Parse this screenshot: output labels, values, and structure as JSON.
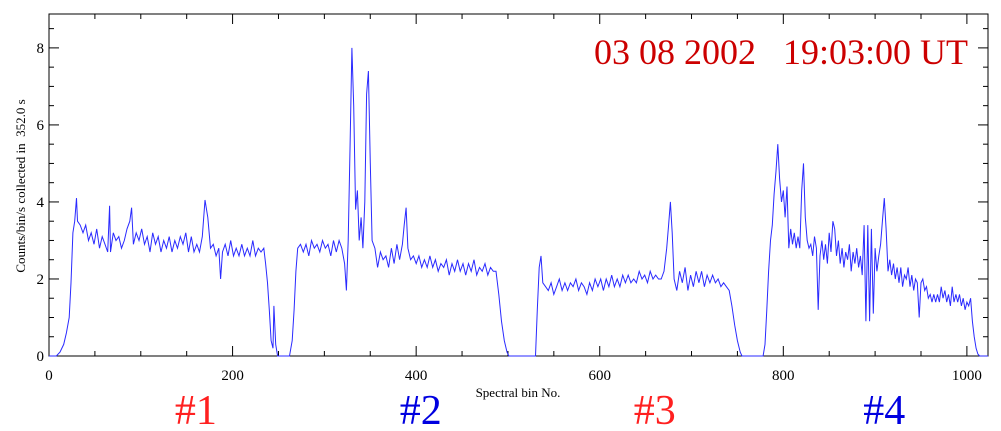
{
  "chart_data": {
    "type": "line",
    "title": "03 08 2002   19:03:00 UT",
    "xlabel": "Spectral bin No.",
    "ylabel": "Counts/bin/s collected in  352.0 s",
    "xlim": [
      0,
      1023
    ],
    "ylim": [
      0,
      8.88
    ],
    "xticks": [
      0,
      200,
      400,
      600,
      800,
      1000
    ],
    "yticks": [
      0,
      2,
      4,
      6,
      8
    ],
    "grid": false,
    "line_color": "#2a2aff",
    "title_color": "#cc0000",
    "segment_labels": [
      {
        "text": "#1",
        "color": "#ff2020",
        "x": 160
      },
      {
        "text": "#2",
        "color": "#0000e0",
        "x": 405
      },
      {
        "text": "#3",
        "color": "#ff2020",
        "x": 660
      },
      {
        "text": "#4",
        "color": "#0000e0",
        "x": 910
      }
    ],
    "points": [
      [
        0,
        0
      ],
      [
        8,
        0
      ],
      [
        12,
        0.1
      ],
      [
        16,
        0.3
      ],
      [
        19,
        0.6
      ],
      [
        22,
        1.0
      ],
      [
        24,
        1.9
      ],
      [
        26,
        3.2
      ],
      [
        28,
        3.5
      ],
      [
        30,
        4.1
      ],
      [
        31,
        3.5
      ],
      [
        34,
        3.4
      ],
      [
        37,
        3.2
      ],
      [
        40,
        3.4
      ],
      [
        43,
        3.0
      ],
      [
        46,
        3.2
      ],
      [
        49,
        2.9
      ],
      [
        52,
        3.3
      ],
      [
        55,
        2.8
      ],
      [
        58,
        3.1
      ],
      [
        61,
        2.9
      ],
      [
        64,
        2.7
      ],
      [
        66,
        3.9
      ],
      [
        67,
        2.7
      ],
      [
        70,
        3.2
      ],
      [
        73,
        3.0
      ],
      [
        76,
        3.1
      ],
      [
        79,
        2.8
      ],
      [
        82,
        3.0
      ],
      [
        85,
        3.3
      ],
      [
        88,
        3.5
      ],
      [
        90,
        3.85
      ],
      [
        92,
        2.9
      ],
      [
        95,
        3.2
      ],
      [
        98,
        3.0
      ],
      [
        101,
        3.3
      ],
      [
        104,
        2.9
      ],
      [
        107,
        3.1
      ],
      [
        110,
        2.7
      ],
      [
        113,
        3.2
      ],
      [
        116,
        2.9
      ],
      [
        119,
        3.1
      ],
      [
        122,
        2.7
      ],
      [
        125,
        3.0
      ],
      [
        128,
        2.8
      ],
      [
        131,
        3.1
      ],
      [
        134,
        2.7
      ],
      [
        137,
        3.0
      ],
      [
        140,
        2.8
      ],
      [
        143,
        3.1
      ],
      [
        146,
        2.9
      ],
      [
        149,
        3.2
      ],
      [
        152,
        2.7
      ],
      [
        155,
        3.1
      ],
      [
        158,
        2.7
      ],
      [
        161,
        2.9
      ],
      [
        164,
        2.7
      ],
      [
        167,
        3.1
      ],
      [
        170,
        4.05
      ],
      [
        173,
        3.6
      ],
      [
        176,
        2.8
      ],
      [
        179,
        2.9
      ],
      [
        182,
        2.6
      ],
      [
        185,
        2.8
      ],
      [
        187,
        2.0
      ],
      [
        189,
        2.7
      ],
      [
        192,
        2.9
      ],
      [
        195,
        2.6
      ],
      [
        198,
        3.0
      ],
      [
        201,
        2.6
      ],
      [
        204,
        2.8
      ],
      [
        207,
        2.6
      ],
      [
        210,
        2.9
      ],
      [
        213,
        2.6
      ],
      [
        216,
        2.8
      ],
      [
        219,
        2.6
      ],
      [
        222,
        3.0
      ],
      [
        225,
        2.6
      ],
      [
        228,
        2.8
      ],
      [
        231,
        2.7
      ],
      [
        234,
        2.8
      ],
      [
        236,
        2.4
      ],
      [
        238,
        1.9
      ],
      [
        240,
        1.2
      ],
      [
        242,
        0.4
      ],
      [
        244,
        0.2
      ],
      [
        245,
        1.3
      ],
      [
        247,
        0.3
      ],
      [
        249,
        0
      ],
      [
        262,
        0
      ],
      [
        265,
        0.4
      ],
      [
        267,
        1.2
      ],
      [
        269,
        2.2
      ],
      [
        271,
        2.8
      ],
      [
        274,
        2.9
      ],
      [
        277,
        2.7
      ],
      [
        280,
        2.9
      ],
      [
        283,
        2.6
      ],
      [
        286,
        3.0
      ],
      [
        289,
        2.8
      ],
      [
        292,
        2.9
      ],
      [
        295,
        2.7
      ],
      [
        298,
        3.0
      ],
      [
        301,
        2.8
      ],
      [
        304,
        2.9
      ],
      [
        307,
        2.6
      ],
      [
        310,
        3.0
      ],
      [
        313,
        2.7
      ],
      [
        316,
        3.0
      ],
      [
        319,
        2.8
      ],
      [
        322,
        2.4
      ],
      [
        324,
        1.7
      ],
      [
        326,
        3.0
      ],
      [
        328,
        5.5
      ],
      [
        330,
        8.0
      ],
      [
        332,
        6.5
      ],
      [
        334,
        3.8
      ],
      [
        336,
        4.3
      ],
      [
        338,
        3.0
      ],
      [
        340,
        3.6
      ],
      [
        342,
        2.8
      ],
      [
        344,
        4.0
      ],
      [
        346,
        6.8
      ],
      [
        348,
        7.4
      ],
      [
        350,
        5.0
      ],
      [
        352,
        3.0
      ],
      [
        355,
        2.8
      ],
      [
        358,
        2.3
      ],
      [
        361,
        2.7
      ],
      [
        364,
        2.5
      ],
      [
        367,
        2.6
      ],
      [
        370,
        2.3
      ],
      [
        373,
        2.8
      ],
      [
        376,
        2.4
      ],
      [
        379,
        2.9
      ],
      [
        382,
        2.5
      ],
      [
        385,
        2.9
      ],
      [
        387,
        3.4
      ],
      [
        389,
        3.85
      ],
      [
        391,
        2.8
      ],
      [
        394,
        2.5
      ],
      [
        397,
        2.6
      ],
      [
        400,
        2.4
      ],
      [
        403,
        2.6
      ],
      [
        406,
        2.3
      ],
      [
        409,
        2.5
      ],
      [
        412,
        2.3
      ],
      [
        415,
        2.6
      ],
      [
        418,
        2.3
      ],
      [
        421,
        2.5
      ],
      [
        424,
        2.2
      ],
      [
        427,
        2.4
      ],
      [
        430,
        2.3
      ],
      [
        433,
        2.5
      ],
      [
        436,
        2.1
      ],
      [
        439,
        2.4
      ],
      [
        442,
        2.2
      ],
      [
        445,
        2.5
      ],
      [
        448,
        2.2
      ],
      [
        451,
        2.4
      ],
      [
        454,
        2.1
      ],
      [
        457,
        2.4
      ],
      [
        460,
        2.2
      ],
      [
        463,
        2.5
      ],
      [
        466,
        2.1
      ],
      [
        469,
        2.3
      ],
      [
        472,
        2.2
      ],
      [
        475,
        2.4
      ],
      [
        478,
        2.1
      ],
      [
        481,
        2.3
      ],
      [
        484,
        2.2
      ],
      [
        487,
        2.2
      ],
      [
        490,
        1.6
      ],
      [
        493,
        0.9
      ],
      [
        496,
        0.4
      ],
      [
        499,
        0.1
      ],
      [
        501,
        0
      ],
      [
        530,
        0
      ],
      [
        532,
        1.2
      ],
      [
        534,
        2.3
      ],
      [
        536,
        2.6
      ],
      [
        538,
        1.9
      ],
      [
        541,
        1.8
      ],
      [
        544,
        1.7
      ],
      [
        547,
        1.9
      ],
      [
        550,
        1.6
      ],
      [
        553,
        1.8
      ],
      [
        556,
        2.0
      ],
      [
        559,
        1.7
      ],
      [
        562,
        1.9
      ],
      [
        565,
        1.7
      ],
      [
        568,
        1.9
      ],
      [
        571,
        1.8
      ],
      [
        574,
        2.0
      ],
      [
        577,
        1.7
      ],
      [
        580,
        1.9
      ],
      [
        583,
        1.8
      ],
      [
        586,
        1.6
      ],
      [
        589,
        1.9
      ],
      [
        592,
        1.7
      ],
      [
        595,
        2.0
      ],
      [
        598,
        1.8
      ],
      [
        601,
        2.0
      ],
      [
        604,
        1.7
      ],
      [
        607,
        2.0
      ],
      [
        610,
        1.8
      ],
      [
        613,
        2.1
      ],
      [
        616,
        1.8
      ],
      [
        619,
        2.0
      ],
      [
        622,
        1.8
      ],
      [
        625,
        2.1
      ],
      [
        628,
        1.9
      ],
      [
        631,
        2.1
      ],
      [
        634,
        1.9
      ],
      [
        637,
        2.0
      ],
      [
        640,
        1.9
      ],
      [
        643,
        2.2
      ],
      [
        646,
        2.0
      ],
      [
        649,
        2.1
      ],
      [
        652,
        1.9
      ],
      [
        655,
        2.2
      ],
      [
        658,
        2.0
      ],
      [
        661,
        2.1
      ],
      [
        664,
        2.0
      ],
      [
        667,
        2.0
      ],
      [
        670,
        2.2
      ],
      [
        673,
        2.8
      ],
      [
        675,
        3.4
      ],
      [
        677,
        4.0
      ],
      [
        679,
        3.2
      ],
      [
        681,
        2.0
      ],
      [
        684,
        1.7
      ],
      [
        687,
        2.2
      ],
      [
        690,
        1.9
      ],
      [
        693,
        2.3
      ],
      [
        696,
        1.7
      ],
      [
        699,
        2.1
      ],
      [
        702,
        1.8
      ],
      [
        705,
        2.2
      ],
      [
        708,
        1.9
      ],
      [
        711,
        2.2
      ],
      [
        714,
        1.8
      ],
      [
        717,
        2.1
      ],
      [
        720,
        1.9
      ],
      [
        723,
        2.1
      ],
      [
        726,
        1.9
      ],
      [
        729,
        2.0
      ],
      [
        732,
        1.8
      ],
      [
        735,
        1.9
      ],
      [
        738,
        1.8
      ],
      [
        741,
        1.7
      ],
      [
        744,
        1.3
      ],
      [
        747,
        0.8
      ],
      [
        750,
        0.4
      ],
      [
        753,
        0.1
      ],
      [
        755,
        0
      ],
      [
        778,
        0
      ],
      [
        780,
        0.3
      ],
      [
        782,
        1.2
      ],
      [
        784,
        2.2
      ],
      [
        786,
        3.0
      ],
      [
        788,
        3.4
      ],
      [
        790,
        4.2
      ],
      [
        792,
        4.8
      ],
      [
        794,
        5.5
      ],
      [
        796,
        4.6
      ],
      [
        798,
        4.0
      ],
      [
        800,
        4.3
      ],
      [
        802,
        3.6
      ],
      [
        804,
        4.4
      ],
      [
        806,
        2.8
      ],
      [
        808,
        3.3
      ],
      [
        810,
        2.9
      ],
      [
        812,
        3.2
      ],
      [
        814,
        2.8
      ],
      [
        816,
        3.1
      ],
      [
        818,
        2.8
      ],
      [
        820,
        4.3
      ],
      [
        822,
        5.0
      ],
      [
        824,
        3.6
      ],
      [
        826,
        3.0
      ],
      [
        828,
        2.8
      ],
      [
        830,
        2.9
      ],
      [
        832,
        2.6
      ],
      [
        834,
        3.1
      ],
      [
        836,
        2.8
      ],
      [
        838,
        1.2
      ],
      [
        840,
        2.6
      ],
      [
        842,
        3.0
      ],
      [
        844,
        2.5
      ],
      [
        846,
        2.9
      ],
      [
        848,
        2.4
      ],
      [
        850,
        3.2
      ],
      [
        852,
        2.7
      ],
      [
        854,
        3.5
      ],
      [
        856,
        3.3
      ],
      [
        858,
        2.6
      ],
      [
        860,
        3.0
      ],
      [
        862,
        2.4
      ],
      [
        864,
        2.8
      ],
      [
        866,
        2.3
      ],
      [
        868,
        2.7
      ],
      [
        870,
        2.5
      ],
      [
        872,
        2.9
      ],
      [
        874,
        2.2
      ],
      [
        876,
        2.7
      ],
      [
        878,
        2.4
      ],
      [
        880,
        2.8
      ],
      [
        882,
        2.3
      ],
      [
        884,
        2.6
      ],
      [
        886,
        2.1
      ],
      [
        888,
        3.4
      ],
      [
        890,
        0.9
      ],
      [
        892,
        3.4
      ],
      [
        894,
        0.9
      ],
      [
        896,
        3.3
      ],
      [
        898,
        1.1
      ],
      [
        900,
        2.8
      ],
      [
        902,
        2.2
      ],
      [
        904,
        2.6
      ],
      [
        906,
        2.9
      ],
      [
        908,
        3.5
      ],
      [
        910,
        4.1
      ],
      [
        912,
        3.3
      ],
      [
        914,
        2.2
      ],
      [
        916,
        2.5
      ],
      [
        918,
        2.1
      ],
      [
        920,
        2.4
      ],
      [
        922,
        2.0
      ],
      [
        924,
        2.3
      ],
      [
        926,
        1.9
      ],
      [
        928,
        2.3
      ],
      [
        930,
        1.8
      ],
      [
        932,
        2.1
      ],
      [
        934,
        2.0
      ],
      [
        936,
        2.3
      ],
      [
        938,
        1.8
      ],
      [
        940,
        2.1
      ],
      [
        942,
        1.7
      ],
      [
        944,
        2.0
      ],
      [
        946,
        1.9
      ],
      [
        948,
        1.0
      ],
      [
        950,
        1.9
      ],
      [
        952,
        2.0
      ],
      [
        954,
        1.7
      ],
      [
        956,
        1.8
      ],
      [
        958,
        1.5
      ],
      [
        960,
        1.6
      ],
      [
        962,
        1.4
      ],
      [
        964,
        1.6
      ],
      [
        966,
        1.4
      ],
      [
        968,
        1.6
      ],
      [
        970,
        1.4
      ],
      [
        972,
        1.8
      ],
      [
        974,
        1.5
      ],
      [
        976,
        1.7
      ],
      [
        978,
        1.4
      ],
      [
        980,
        1.6
      ],
      [
        982,
        1.3
      ],
      [
        984,
        1.8
      ],
      [
        986,
        1.4
      ],
      [
        988,
        1.6
      ],
      [
        990,
        1.4
      ],
      [
        992,
        1.6
      ],
      [
        994,
        1.3
      ],
      [
        996,
        1.5
      ],
      [
        998,
        1.2
      ],
      [
        1000,
        1.4
      ],
      [
        1002,
        1.3
      ],
      [
        1004,
        1.5
      ],
      [
        1006,
        0.9
      ],
      [
        1008,
        0.5
      ],
      [
        1010,
        0.2
      ],
      [
        1012,
        0.05
      ],
      [
        1014,
        0
      ],
      [
        1023,
        0
      ]
    ]
  }
}
